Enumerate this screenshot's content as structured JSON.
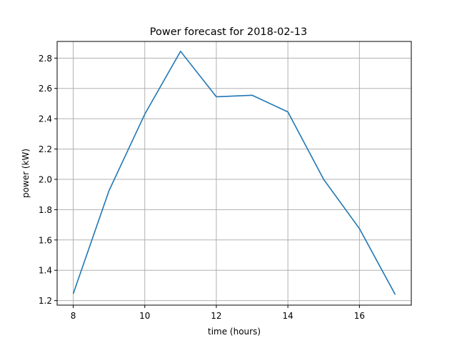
{
  "chart_data": {
    "type": "line",
    "title": "Power forecast for 2018-02-13",
    "xlabel": "time (hours)",
    "ylabel": "power (kW)",
    "xlim": [
      7.55,
      17.45
    ],
    "ylim": [
      1.17,
      2.91
    ],
    "xticks": [
      8,
      10,
      12,
      14,
      16
    ],
    "yticks": [
      1.2,
      1.4,
      1.6,
      1.8,
      2.0,
      2.2,
      2.4,
      2.6,
      2.8
    ],
    "grid": true,
    "series": [
      {
        "color": "#1f77b4",
        "x": [
          8,
          9,
          10,
          11,
          12,
          13,
          14,
          15,
          16,
          17
        ],
        "y": [
          1.245,
          1.925,
          2.43,
          2.845,
          2.545,
          2.555,
          2.445,
          2.0,
          1.675,
          1.24
        ]
      }
    ]
  }
}
